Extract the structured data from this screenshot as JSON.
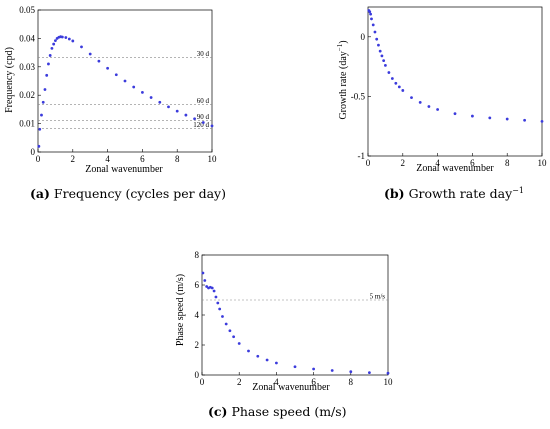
{
  "captions": [
    {
      "tag": "(a)",
      "text": "Frequency (cycles per day)"
    },
    {
      "tag": "(b)",
      "text": "Growth rate day",
      "sup": "−1"
    },
    {
      "tag": "(c)",
      "text": "Phase speed (m/s)"
    }
  ],
  "chart_data": [
    {
      "type": "scatter",
      "xlabel": "Zonal wavenumber",
      "ylabel": "Frequency (cpd)",
      "xlim": [
        0,
        10
      ],
      "ylim": [
        0,
        0.05
      ],
      "xticks": [
        "0",
        "2",
        "4",
        "6",
        "8",
        "10"
      ],
      "yticks": [
        "0",
        "0.01",
        "0.02",
        "0.03",
        "0.04",
        "0.05"
      ],
      "reference_lines": [
        {
          "y": 0.0333,
          "label": "30 d"
        },
        {
          "y": 0.0167,
          "label": "60 d"
        },
        {
          "y": 0.0111,
          "label": "90 d"
        },
        {
          "y": 0.0083,
          "label": "120 d"
        }
      ],
      "points": [
        [
          0.05,
          0.002
        ],
        [
          0.1,
          0.008
        ],
        [
          0.2,
          0.013
        ],
        [
          0.3,
          0.0175
        ],
        [
          0.4,
          0.022
        ],
        [
          0.5,
          0.027
        ],
        [
          0.6,
          0.031
        ],
        [
          0.7,
          0.034
        ],
        [
          0.8,
          0.0365
        ],
        [
          0.9,
          0.038
        ],
        [
          1.0,
          0.0392
        ],
        [
          1.1,
          0.04
        ],
        [
          1.2,
          0.0404
        ],
        [
          1.3,
          0.0406
        ],
        [
          1.4,
          0.0405
        ],
        [
          1.6,
          0.0403
        ],
        [
          1.8,
          0.0398
        ],
        [
          2.0,
          0.0391
        ],
        [
          2.5,
          0.037
        ],
        [
          3.0,
          0.0345
        ],
        [
          3.5,
          0.032
        ],
        [
          4.0,
          0.0295
        ],
        [
          4.5,
          0.0272
        ],
        [
          5.0,
          0.025
        ],
        [
          5.5,
          0.0229
        ],
        [
          6.0,
          0.021
        ],
        [
          6.5,
          0.0192
        ],
        [
          7.0,
          0.0175
        ],
        [
          7.5,
          0.0159
        ],
        [
          8.0,
          0.0144
        ],
        [
          8.5,
          0.013
        ],
        [
          9.0,
          0.0117
        ],
        [
          9.5,
          0.0104
        ],
        [
          10.0,
          0.0092
        ]
      ],
      "color": "#3b3bdc"
    },
    {
      "type": "scatter",
      "xlabel": "Zonal wavenumber",
      "ylabel": "Growth rate (day",
      "ylabel_sup": "−1",
      "ylabel_tail": ")",
      "xlim": [
        0,
        10
      ],
      "ylim": [
        -1,
        0.25
      ],
      "xticks": [
        "0",
        "2",
        "4",
        "6",
        "8",
        "10"
      ],
      "yticks": [
        "-1",
        "-0.5",
        "0"
      ],
      "points": [
        [
          0.05,
          0.22
        ],
        [
          0.1,
          0.21
        ],
        [
          0.15,
          0.19
        ],
        [
          0.2,
          0.15
        ],
        [
          0.3,
          0.1
        ],
        [
          0.4,
          0.04
        ],
        [
          0.5,
          -0.02
        ],
        [
          0.6,
          -0.07
        ],
        [
          0.7,
          -0.12
        ],
        [
          0.8,
          -0.16
        ],
        [
          0.9,
          -0.2
        ],
        [
          1.0,
          -0.24
        ],
        [
          1.2,
          -0.3
        ],
        [
          1.4,
          -0.35
        ],
        [
          1.6,
          -0.39
        ],
        [
          1.8,
          -0.42
        ],
        [
          2.0,
          -0.45
        ],
        [
          2.5,
          -0.51
        ],
        [
          3.0,
          -0.55
        ],
        [
          3.5,
          -0.585
        ],
        [
          4.0,
          -0.61
        ],
        [
          5.0,
          -0.645
        ],
        [
          6.0,
          -0.665
        ],
        [
          7.0,
          -0.68
        ],
        [
          8.0,
          -0.69
        ],
        [
          9.0,
          -0.7
        ],
        [
          10.0,
          -0.71
        ]
      ],
      "color": "#3b3bdc"
    },
    {
      "type": "scatter",
      "xlabel": "Zonal wavenumber",
      "ylabel": "Phase speed (m/s)",
      "xlim": [
        0,
        10
      ],
      "ylim": [
        0,
        8
      ],
      "xticks": [
        "0",
        "2",
        "4",
        "6",
        "8",
        "10"
      ],
      "yticks": [
        "0",
        "2",
        "4",
        "6",
        "8"
      ],
      "reference_lines": [
        {
          "y": 5,
          "label": "5 m/s"
        }
      ],
      "points": [
        [
          0.05,
          6.8
        ],
        [
          0.15,
          6.3
        ],
        [
          0.25,
          5.9
        ],
        [
          0.35,
          5.8
        ],
        [
          0.45,
          5.85
        ],
        [
          0.55,
          5.8
        ],
        [
          0.65,
          5.6
        ],
        [
          0.75,
          5.2
        ],
        [
          0.85,
          4.8
        ],
        [
          0.95,
          4.4
        ],
        [
          1.1,
          3.9
        ],
        [
          1.3,
          3.4
        ],
        [
          1.5,
          2.95
        ],
        [
          1.7,
          2.55
        ],
        [
          2.0,
          2.1
        ],
        [
          2.5,
          1.6
        ],
        [
          3.0,
          1.25
        ],
        [
          3.5,
          1.0
        ],
        [
          4.0,
          0.8
        ],
        [
          5.0,
          0.55
        ],
        [
          6.0,
          0.4
        ],
        [
          7.0,
          0.3
        ],
        [
          8.0,
          0.22
        ],
        [
          9.0,
          0.16
        ],
        [
          10.0,
          0.12
        ]
      ],
      "color": "#3b3bdc"
    }
  ]
}
